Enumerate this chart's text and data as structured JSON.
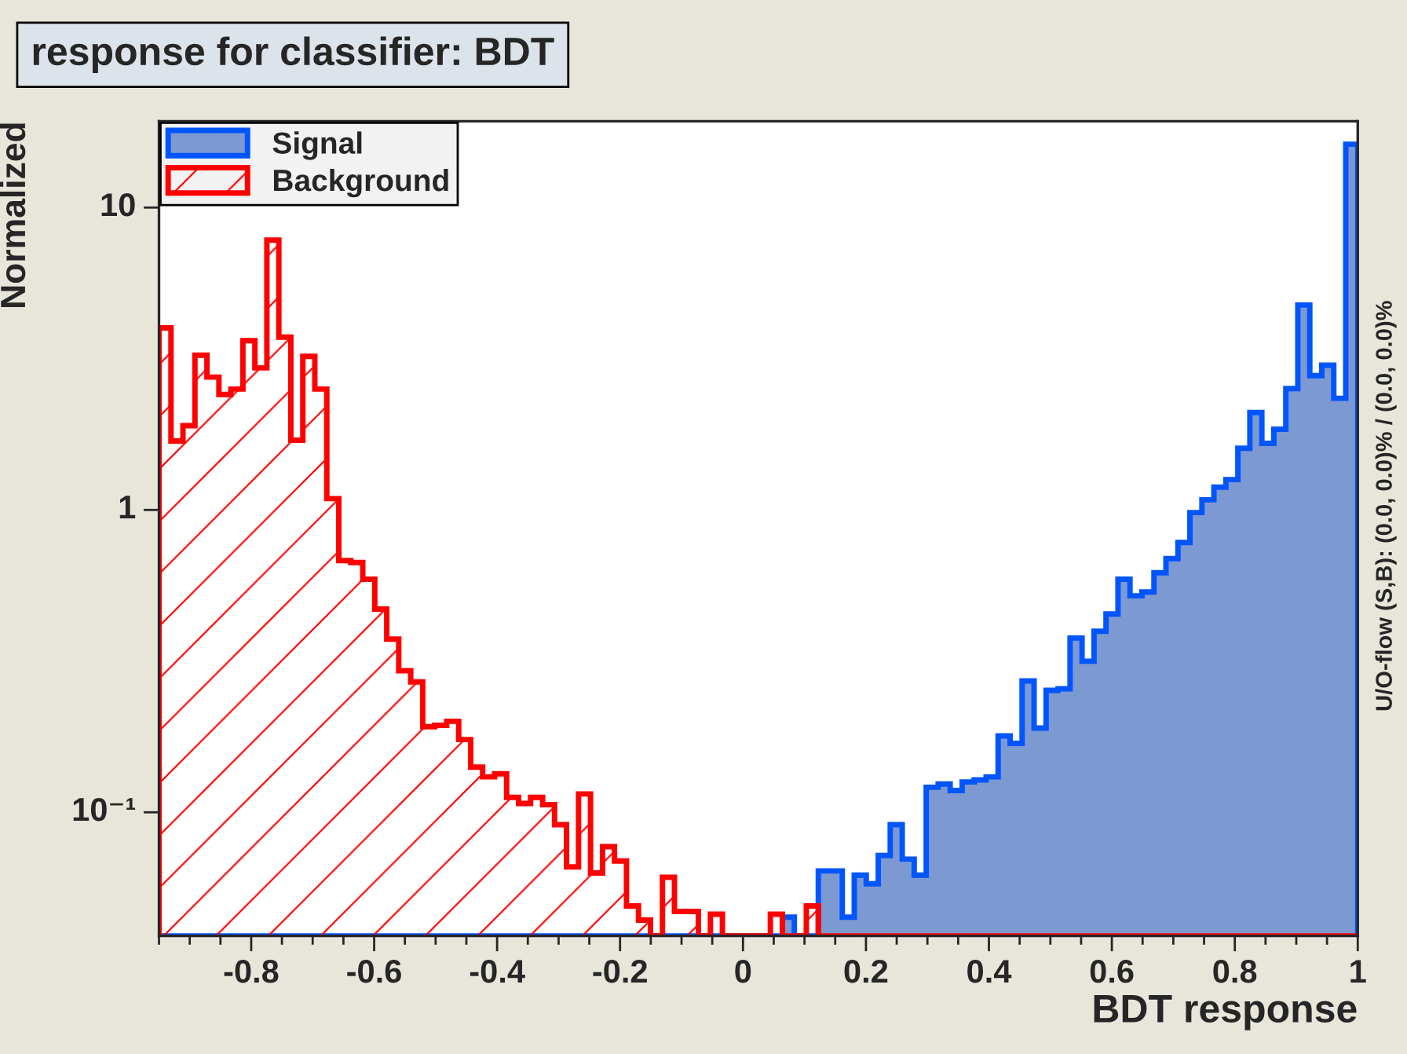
{
  "chart_data": {
    "type": "histogram",
    "title": "response for classifier: BDT",
    "xlabel": "BDT response",
    "ylabel": "Normalized",
    "bins": [
      -0.95,
      -0.9305,
      -0.911,
      -0.8915,
      -0.872,
      -0.8525,
      -0.833,
      -0.8135,
      -0.794,
      -0.7745,
      -0.755,
      -0.7355,
      -0.716,
      -0.6965,
      -0.677,
      -0.6575,
      -0.638,
      -0.6185,
      -0.599,
      -0.5795,
      -0.56,
      -0.5405,
      -0.521,
      -0.5015,
      -0.482,
      -0.4625,
      -0.443,
      -0.4235,
      -0.404,
      -0.3845,
      -0.365,
      -0.3455,
      -0.326,
      -0.3065,
      -0.287,
      -0.2675,
      -0.248,
      -0.2285,
      -0.209,
      -0.1895,
      -0.17,
      -0.1505,
      -0.131,
      -0.1115,
      -0.092,
      -0.0725,
      -0.053,
      -0.0335,
      -0.014,
      0.0055,
      0.025,
      0.0445,
      0.064,
      0.0835,
      0.103,
      0.1225,
      0.142,
      0.1615,
      0.181,
      0.2005,
      0.22,
      0.2395,
      0.259,
      0.2785,
      0.298,
      0.3175,
      0.337,
      0.3565,
      0.376,
      0.3955,
      0.415,
      0.4345,
      0.454,
      0.4735,
      0.493,
      0.5125,
      0.532,
      0.5515,
      0.571,
      0.5905,
      0.61,
      0.6295,
      0.649,
      0.6685,
      0.688,
      0.7075,
      0.727,
      0.7465,
      0.766,
      0.7855,
      0.805,
      0.8245,
      0.844,
      0.8635,
      0.883,
      0.9025,
      0.922,
      0.9415,
      0.961,
      0.9805,
      1.0
    ],
    "series": [
      {
        "name": "Signal",
        "color": "#7d99d1",
        "values": [
          null,
          null,
          null,
          null,
          null,
          null,
          null,
          null,
          null,
          null,
          null,
          null,
          null,
          null,
          null,
          null,
          null,
          null,
          null,
          null,
          null,
          null,
          null,
          null,
          null,
          null,
          null,
          null,
          null,
          null,
          null,
          null,
          null,
          null,
          null,
          null,
          null,
          null,
          null,
          null,
          null,
          null,
          null,
          null,
          null,
          null,
          null,
          null,
          null,
          null,
          null,
          null,
          0.045,
          null,
          null,
          0.064,
          0.064,
          0.045,
          0.062,
          0.058,
          0.072,
          0.091,
          0.07,
          0.062,
          0.121,
          0.124,
          0.118,
          0.126,
          0.128,
          0.131,
          0.179,
          0.169,
          0.272,
          0.19,
          0.253,
          0.256,
          0.377,
          0.316,
          0.397,
          0.453,
          0.59,
          0.52,
          0.535,
          0.62,
          0.69,
          0.78,
          0.98,
          1.08,
          1.19,
          1.26,
          1.6,
          2.1,
          1.66,
          1.85,
          2.52,
          4.76,
          2.78,
          3.01,
          2.34,
          16.2
        ]
      },
      {
        "name": "Background",
        "color": "#ff0000",
        "values": [
          4.0,
          1.69,
          1.9,
          3.25,
          2.75,
          2.41,
          2.51,
          3.63,
          2.95,
          7.8,
          3.73,
          1.7,
          3.22,
          2.51,
          1.09,
          0.68,
          0.67,
          0.59,
          0.47,
          0.374,
          0.294,
          0.27,
          0.192,
          0.194,
          0.2,
          0.174,
          0.141,
          0.131,
          0.134,
          0.112,
          0.107,
          0.112,
          0.106,
          0.091,
          0.066,
          0.115,
          0.063,
          0.077,
          0.069,
          0.049,
          0.044,
          null,
          0.061,
          0.047,
          0.047,
          null,
          0.046,
          null,
          null,
          null,
          null,
          0.046,
          null,
          null,
          0.049,
          null,
          null,
          null,
          null,
          null,
          null,
          null,
          null,
          null,
          null,
          null,
          null,
          null,
          null,
          null,
          null,
          null,
          null,
          null,
          null,
          null,
          null,
          null,
          null,
          null,
          null,
          null,
          null,
          null,
          null,
          null,
          null,
          null,
          null,
          null,
          null,
          null,
          null,
          null,
          null,
          null,
          null,
          null,
          null,
          null
        ]
      }
    ],
    "log": "y",
    "xlim": [
      -0.95,
      1.0
    ],
    "ylim": [
      0.039,
      19.3
    ],
    "xticks": [
      -0.8,
      -0.6,
      -0.4,
      -0.2,
      0,
      0.2,
      0.4,
      0.6,
      0.8,
      1
    ],
    "yticks": [
      {
        "value": 0.1,
        "label": "10⁻¹"
      },
      1,
      10
    ],
    "legend": "top left",
    "grid": false,
    "annotations": [
      "U/O-flow (S,B): (0.0, 0.0)% / (0.0, 0.0)%"
    ]
  }
}
